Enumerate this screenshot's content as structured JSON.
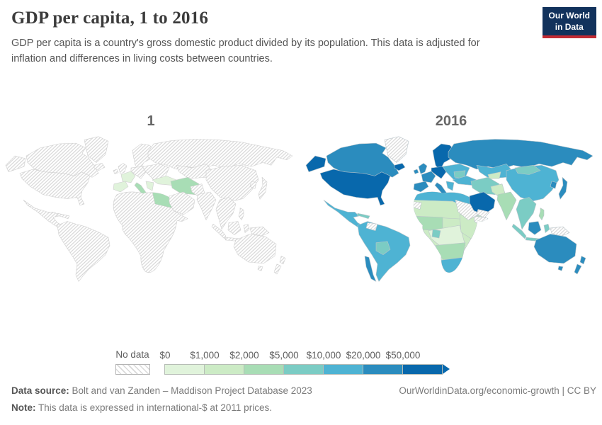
{
  "header": {
    "title": "GDP per capita, 1 to 2016",
    "subtitle": "GDP per capita is a country's gross domestic product divided by its population. This data is adjusted for inflation and differences in living costs between countries.",
    "logo": {
      "line1": "Our World",
      "line2": "in Data",
      "bg_color": "#12325c",
      "accent_color": "#c22b33"
    }
  },
  "footer": {
    "source_label": "Data source:",
    "source_value": "Bolt and van Zanden – Maddison Project Database 2023",
    "note_label": "Note:",
    "note_value": "This data is expressed in international-$ at 2011 prices.",
    "url": "OurWorldinData.org/economic-growth",
    "license": " | CC BY"
  },
  "chart_data": {
    "type": "choropleth_map_pair",
    "title": "GDP per capita, 1 to 2016",
    "unit": "international-$ at 2011 prices",
    "palette": {
      "no_data": "hatch",
      "bin0": "#e0f3db",
      "bin1": "#ccebc5",
      "bin2": "#a8ddb5",
      "bin3": "#7bccc4",
      "bin4": "#4eb3d3",
      "bin5": "#2b8cbe",
      "bin6": "#0868ac"
    },
    "legend": {
      "no_data_label": "No data",
      "tick_labels": [
        "$0",
        "$1,000",
        "$2,000",
        "$5,000",
        "$10,000",
        "$20,000",
        "$50,000"
      ],
      "bin_keys": [
        "bin0",
        "bin1",
        "bin2",
        "bin3",
        "bin4",
        "bin5",
        "bin6"
      ],
      "bin_ranges": [
        "$0–1,000",
        "$1,000–2,000",
        "$2,000–5,000",
        "$5,000–10,000",
        "$10,000–20,000",
        "$20,000–50,000",
        "$50,000+"
      ]
    },
    "maps": [
      {
        "title": "1",
        "border_color": "#cfcfcf",
        "fills": {
          "iberia": "bin0",
          "france": "bin0",
          "italy": "bin2",
          "greece-balkans": "bin0",
          "turkey": "bin0",
          "iran-iraq": "bin2",
          "egypt": "bin2"
        }
      },
      {
        "title": "2016",
        "border_color": "#b9c4c9",
        "fills": {
          "greenland": "no_data",
          "alaska": "bin6",
          "canada": "bin5",
          "usa": "bin6",
          "mexico": "bin4",
          "caribbean": "bin3",
          "south-america": "bin4",
          "chile": "bin5",
          "bolivia-paraguay": "bin3",
          "venezuela": "no_data",
          "iceland": "bin6",
          "uk-ireland": "bin5",
          "scandinavia": "bin6",
          "eastern-europe": "bin4",
          "germany-central-europe": "bin6",
          "france": "bin5",
          "iberia": "bin5",
          "italy": "bin5",
          "greece-balkans": "bin4",
          "ukraine": "bin3",
          "russia": "bin5",
          "kazakhstan-central-asia": "bin4",
          "central-asia-patch": "bin1",
          "china": "bin4",
          "mongolia": "bin3",
          "turkey": "bin4",
          "iran-iraq": "bin3",
          "saudi-arabia": "bin6",
          "yemen": "no_data",
          "pakistan-afghanistan": "bin1",
          "india": "bin2",
          "se-asia": "bin3",
          "japan": "bin5",
          "korea": "bin5",
          "philippines": "bin2",
          "indonesia-sumatra-java": "bin3",
          "borneo": "bin5",
          "sulawesi-isles": "bin3",
          "new-guinea": "no_data",
          "australia": "bin5",
          "new-zealand": "bin5",
          "madagascar": "bin1",
          "africa": "bin1",
          "north-africa": "bin4",
          "sahel": "bin1",
          "west-africa": "bin2",
          "central-africa": "bin0",
          "east-africa": "bin1",
          "somalia": "no_data",
          "sudan": "no_data",
          "wsahara": "no_data",
          "southern-africa": "bin2",
          "south-africa": "bin4",
          "gabon-patch": "bin3"
        }
      }
    ]
  }
}
